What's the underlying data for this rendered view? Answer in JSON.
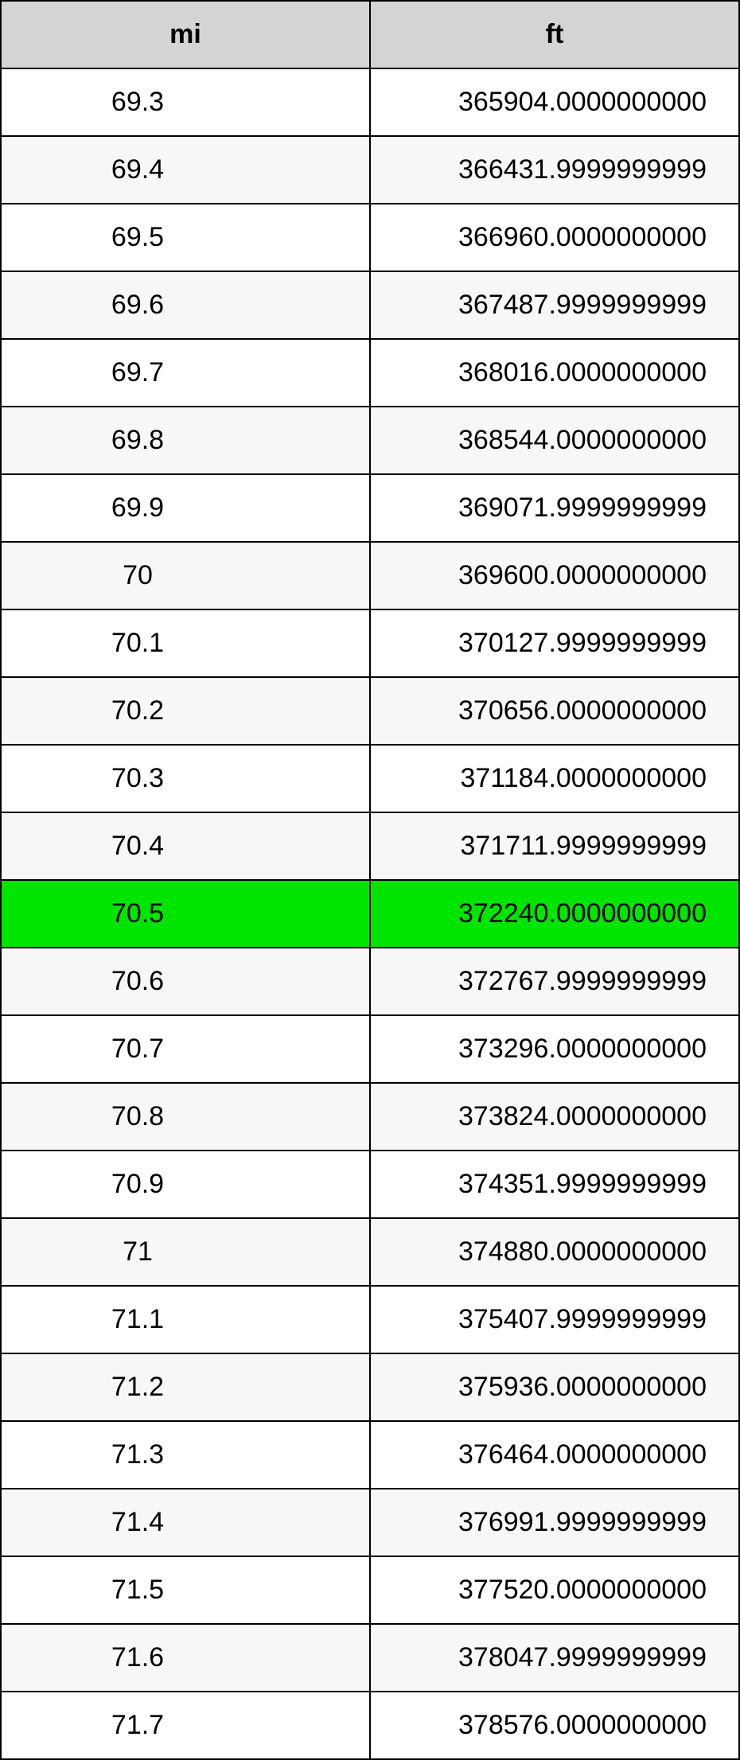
{
  "table": {
    "columns": [
      "mi",
      "ft"
    ],
    "header_bg": "#d4d4d4",
    "border_color": "#000000",
    "row_bg_even": "#ffffff",
    "row_bg_odd": "#f7f7f7",
    "highlight_bg": "#00e500",
    "font_size": 34,
    "rows": [
      {
        "mi": "69.3",
        "ft": "365904.0000000000",
        "highlight": false
      },
      {
        "mi": "69.4",
        "ft": "366431.9999999999",
        "highlight": false
      },
      {
        "mi": "69.5",
        "ft": "366960.0000000000",
        "highlight": false
      },
      {
        "mi": "69.6",
        "ft": "367487.9999999999",
        "highlight": false
      },
      {
        "mi": "69.7",
        "ft": "368016.0000000000",
        "highlight": false
      },
      {
        "mi": "69.8",
        "ft": "368544.0000000000",
        "highlight": false
      },
      {
        "mi": "69.9",
        "ft": "369071.9999999999",
        "highlight": false
      },
      {
        "mi": "70",
        "ft": "369600.0000000000",
        "highlight": false
      },
      {
        "mi": "70.1",
        "ft": "370127.9999999999",
        "highlight": false
      },
      {
        "mi": "70.2",
        "ft": "370656.0000000000",
        "highlight": false
      },
      {
        "mi": "70.3",
        "ft": "371184.0000000000",
        "highlight": false
      },
      {
        "mi": "70.4",
        "ft": "371711.9999999999",
        "highlight": false
      },
      {
        "mi": "70.5",
        "ft": "372240.0000000000",
        "highlight": true
      },
      {
        "mi": "70.6",
        "ft": "372767.9999999999",
        "highlight": false
      },
      {
        "mi": "70.7",
        "ft": "373296.0000000000",
        "highlight": false
      },
      {
        "mi": "70.8",
        "ft": "373824.0000000000",
        "highlight": false
      },
      {
        "mi": "70.9",
        "ft": "374351.9999999999",
        "highlight": false
      },
      {
        "mi": "71",
        "ft": "374880.0000000000",
        "highlight": false
      },
      {
        "mi": "71.1",
        "ft": "375407.9999999999",
        "highlight": false
      },
      {
        "mi": "71.2",
        "ft": "375936.0000000000",
        "highlight": false
      },
      {
        "mi": "71.3",
        "ft": "376464.0000000000",
        "highlight": false
      },
      {
        "mi": "71.4",
        "ft": "376991.9999999999",
        "highlight": false
      },
      {
        "mi": "71.5",
        "ft": "377520.0000000000",
        "highlight": false
      },
      {
        "mi": "71.6",
        "ft": "378047.9999999999",
        "highlight": false
      },
      {
        "mi": "71.7",
        "ft": "378576.0000000000",
        "highlight": false
      }
    ]
  }
}
